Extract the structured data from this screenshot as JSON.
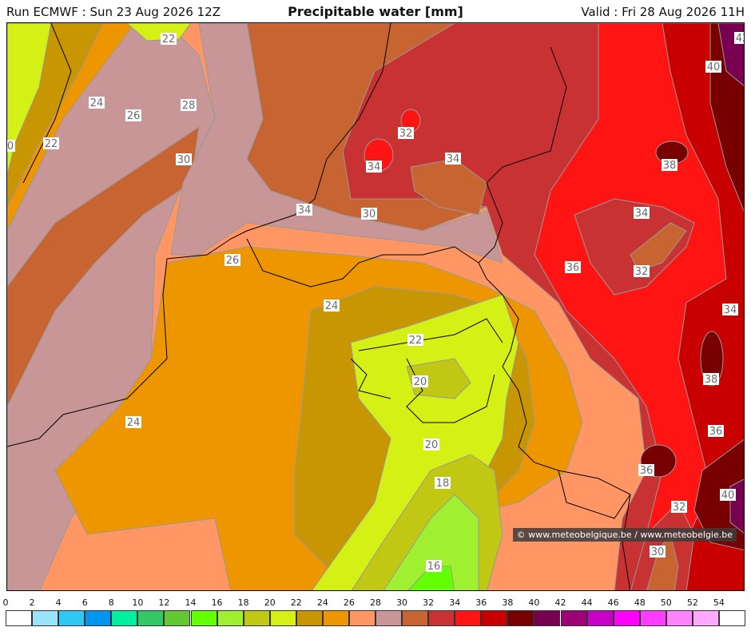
{
  "header": {
    "run": "Run ECMWF : Sun 23 Aug 2026 12Z",
    "title": "Precipitable water [mm]",
    "valid": "Valid : Fri 28 Aug 2026 11H"
  },
  "credit": "© www.meteobelgique.be / www.meteobelgie.be",
  "contour_labels": [
    "22",
    "24",
    "26",
    "28",
    "30",
    "22",
    "24",
    "26",
    "28",
    "34",
    "34",
    "32",
    "34",
    "30",
    "26",
    "24",
    "22",
    "20",
    "20",
    "18",
    "16",
    "24",
    "36",
    "34",
    "32",
    "38",
    "40",
    "42",
    "34",
    "38",
    "36",
    "40",
    "32",
    "30",
    "36",
    "0"
  ],
  "legend": {
    "ticks": [
      "0",
      "2",
      "4",
      "6",
      "8",
      "10",
      "12",
      "14",
      "16",
      "18",
      "20",
      "22",
      "24",
      "26",
      "28",
      "30",
      "32",
      "34",
      "36",
      "38",
      "40",
      "42",
      "44",
      "46",
      "48",
      "50",
      "52",
      "54"
    ],
    "colors": [
      "#ffffff",
      "#9ae4fa",
      "#2ec8f5",
      "#0096f0",
      "#00f0a0",
      "#32c864",
      "#64c832",
      "#64ff00",
      "#a0f032",
      "#c0c814",
      "#d4f014",
      "#c89600",
      "#ee9600",
      "#ff9664",
      "#c89696",
      "#c86432",
      "#c83232",
      "#ff1414",
      "#c80000",
      "#780000",
      "#780050",
      "#a00078",
      "#c800c8",
      "#ff00ff",
      "#ff3cff",
      "#ff82ff",
      "#ffaaff",
      "#ffffff"
    ]
  }
}
